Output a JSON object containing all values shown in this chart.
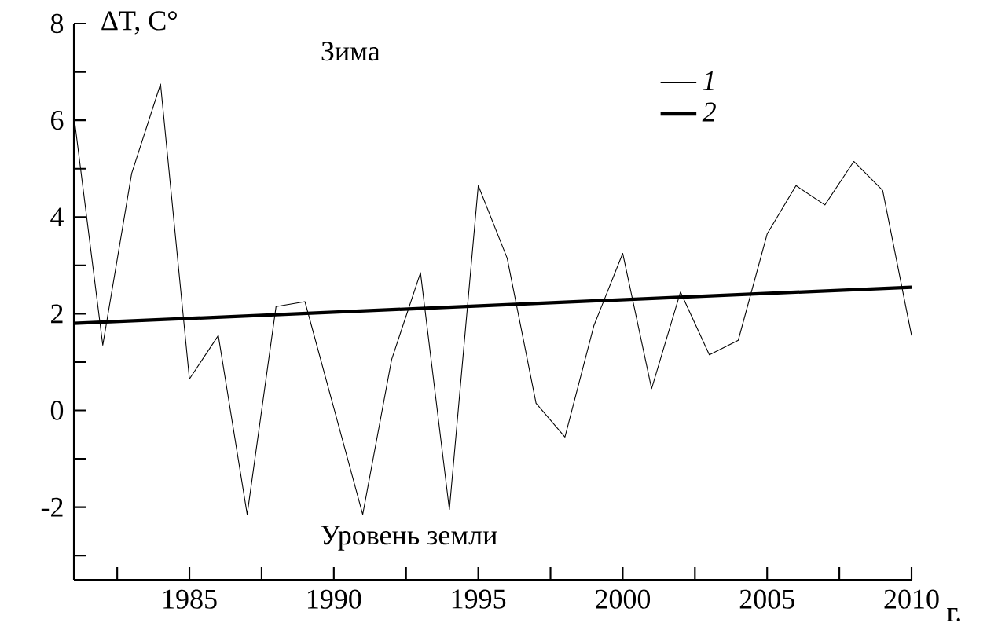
{
  "chart_data": {
    "type": "line",
    "title": "Зима",
    "ylabel": "ΔT, C°",
    "xlabel": "г.",
    "annotations": [
      "Уровень земли"
    ],
    "x": [
      1981,
      1982,
      1983,
      1984,
      1985,
      1986,
      1987,
      1988,
      1989,
      1990,
      1991,
      1992,
      1993,
      1994,
      1995,
      1996,
      1997,
      1998,
      1999,
      2000,
      2001,
      2002,
      2003,
      2004,
      2005,
      2006,
      2007,
      2008,
      2009,
      2010
    ],
    "series": [
      {
        "name": "1",
        "color": "#000000",
        "values": [
          6.1,
          1.35,
          4.9,
          6.75,
          0.65,
          1.55,
          -2.15,
          2.15,
          2.25,
          0.05,
          -2.15,
          1.05,
          2.85,
          -2.05,
          4.65,
          3.15,
          0.15,
          -0.55,
          1.75,
          3.25,
          0.45,
          2.45,
          1.15,
          1.45,
          3.65,
          4.65,
          4.25,
          5.15,
          4.55,
          1.55
        ]
      },
      {
        "name": "2",
        "color": "#000000",
        "x": [
          1981,
          2010
        ],
        "values": [
          1.8,
          2.55
        ]
      }
    ],
    "xlim": [
      1981,
      2010
    ],
    "ylim": [
      -3.5,
      8
    ],
    "xticks": [
      {
        "value": 1982.5,
        "label": null
      },
      1985,
      {
        "value": 1987.5,
        "label": null
      },
      1990,
      {
        "value": 1992.5,
        "label": null
      },
      1995,
      {
        "value": 1997.5,
        "label": null
      },
      2000,
      {
        "value": 2002.5,
        "label": null
      },
      2005,
      {
        "value": 2007.5,
        "label": null
      },
      2010
    ],
    "yticks": [
      {
        "value": -3,
        "label": null
      },
      -2,
      {
        "value": -1,
        "label": null
      },
      0,
      {
        "value": 1,
        "label": null
      },
      2,
      {
        "value": 3,
        "label": null
      },
      4,
      {
        "value": 5,
        "label": null
      },
      6,
      {
        "value": 7,
        "label": null
      },
      8
    ],
    "grid": false,
    "legend": "top right",
    "marker": "none",
    "line_style": "solid"
  }
}
